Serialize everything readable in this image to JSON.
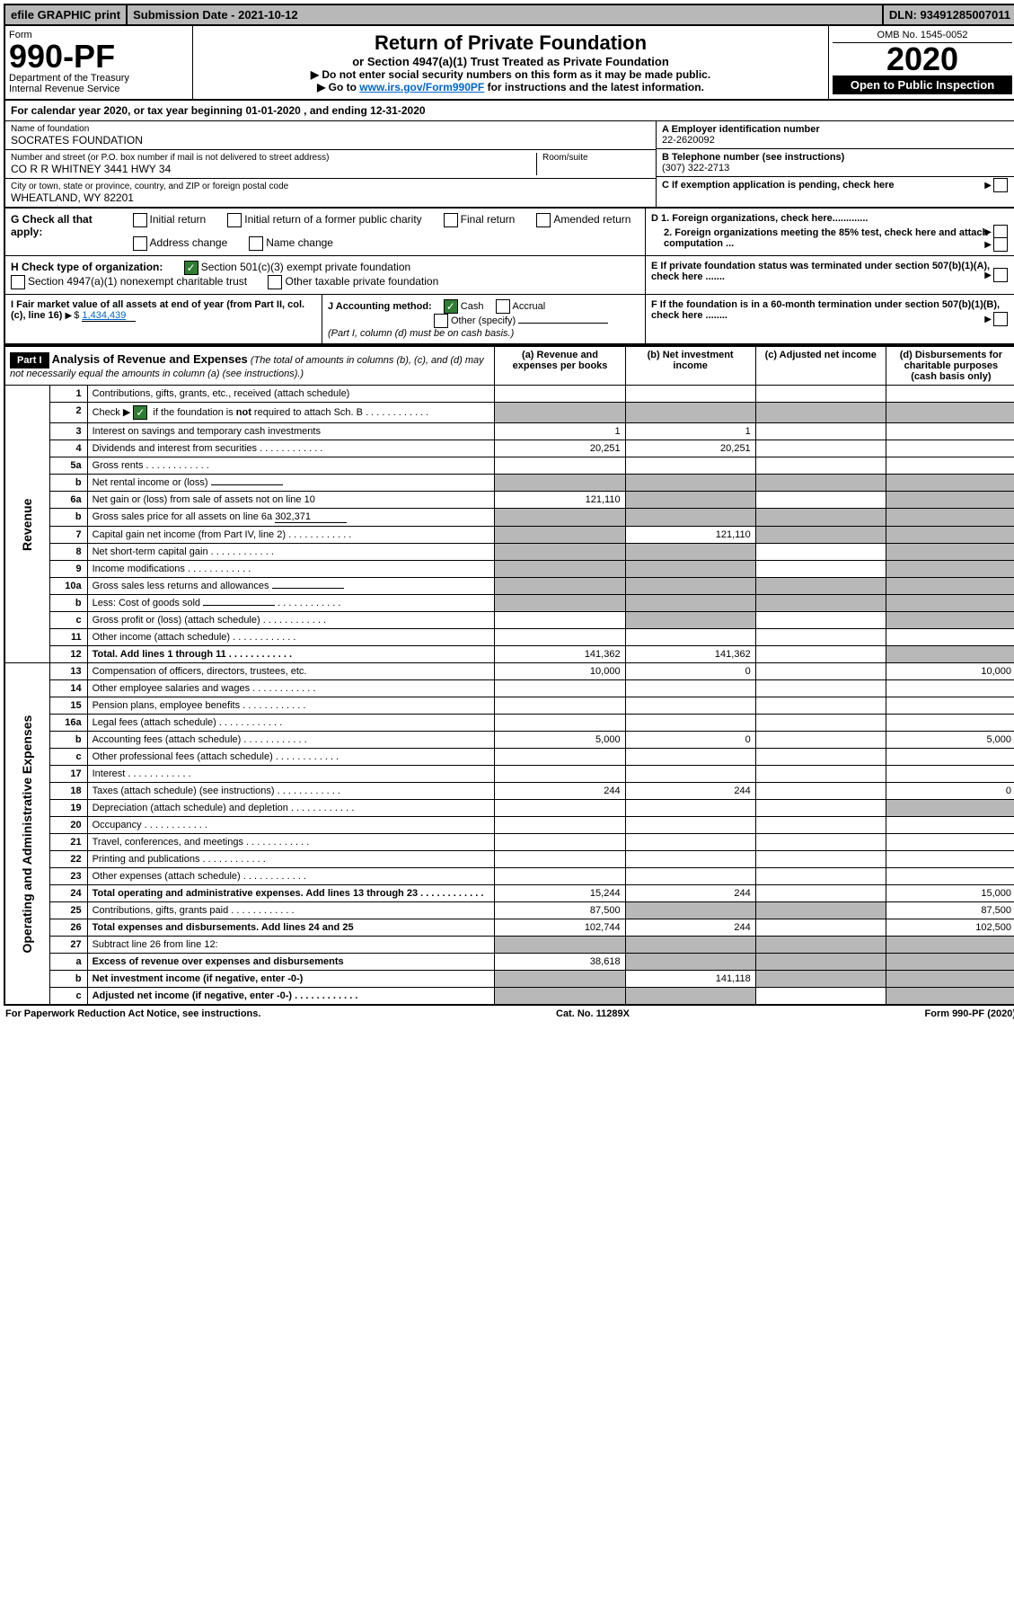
{
  "top": {
    "efile": "efile GRAPHIC print",
    "submission": "Submission Date - 2021-10-12",
    "dln": "DLN: 93491285007011"
  },
  "header": {
    "form_label": "Form",
    "form_number": "990-PF",
    "dept": "Department of the Treasury",
    "irs": "Internal Revenue Service",
    "title": "Return of Private Foundation",
    "subtitle": "or Section 4947(a)(1) Trust Treated as Private Foundation",
    "warn1": "▶ Do not enter social security numbers on this form as it may be made public.",
    "warn2_pre": "▶ Go to ",
    "warn2_link": "www.irs.gov/Form990PF",
    "warn2_post": " for instructions and the latest information.",
    "omb": "OMB No. 1545-0052",
    "year": "2020",
    "open": "Open to Public Inspection"
  },
  "cal_year": "For calendar year 2020, or tax year beginning 01-01-2020                        , and ending 12-31-2020",
  "info": {
    "name_label": "Name of foundation",
    "name": "SOCRATES FOUNDATION",
    "street_label": "Number and street (or P.O. box number if mail is not delivered to street address)",
    "street": "CO R R WHITNEY 3441 HWY 34",
    "room_label": "Room/suite",
    "city_label": "City or town, state or province, country, and ZIP or foreign postal code",
    "city": "WHEATLAND, WY  82201",
    "a_label": "A Employer identification number",
    "a_val": "22-2620092",
    "b_label": "B Telephone number (see instructions)",
    "b_val": "(307) 322-2713",
    "c_label": "C If exemption application is pending, check here",
    "d1_label": "D 1. Foreign organizations, check here.............",
    "d2_label": "2. Foreign organizations meeting the 85% test, check here and attach computation ...",
    "e_label": "E If private foundation status was terminated under section 507(b)(1)(A), check here .......",
    "f_label": "F If the foundation is in a 60-month termination under section 507(b)(1)(B), check here ........"
  },
  "g": {
    "title": "G Check all that apply:",
    "initial": "Initial return",
    "initial_former": "Initial return of a former public charity",
    "final": "Final return",
    "amended": "Amended return",
    "address": "Address change",
    "name": "Name change"
  },
  "h": {
    "title": "H Check type of organization:",
    "sec501": "Section 501(c)(3) exempt private foundation",
    "sec4947": "Section 4947(a)(1) nonexempt charitable trust",
    "other": "Other taxable private foundation"
  },
  "i": {
    "label": "I Fair market value of all assets at end of year (from Part II, col. (c), line 16)",
    "value": "1,434,439"
  },
  "j": {
    "label": "J Accounting method:",
    "cash": "Cash",
    "accrual": "Accrual",
    "other": "Other (specify)",
    "note": "(Part I, column (d) must be on cash basis.)"
  },
  "part1": {
    "label": "Part I",
    "title": "Analysis of Revenue and Expenses",
    "note": "(The total of amounts in columns (b), (c), and (d) may not necessarily equal the amounts in column (a) (see instructions).)",
    "col_a": "(a) Revenue and expenses per books",
    "col_b": "(b) Net investment income",
    "col_c": "(c) Adjusted net income",
    "col_d": "(d) Disbursements for charitable purposes (cash basis only)"
  },
  "side_labels": {
    "revenue": "Revenue",
    "expenses": "Operating and Administrative Expenses"
  },
  "rows": [
    {
      "n": "1",
      "d": "Contributions, gifts, grants, etc., received (attach schedule)",
      "a": "",
      "b": "",
      "c": "",
      "dd": "",
      "grey_c": false,
      "grey_d": false
    },
    {
      "n": "2",
      "d": "Check ▶ ☑ if the foundation is not required to attach Sch. B",
      "a": "",
      "b": "",
      "c": "",
      "dd": "",
      "grey_a": true,
      "grey_b": true,
      "grey_c": true,
      "grey_d": true,
      "bold_d": true,
      "dots": true
    },
    {
      "n": "3",
      "d": "Interest on savings and temporary cash investments",
      "a": "1",
      "b": "1",
      "c": "",
      "dd": ""
    },
    {
      "n": "4",
      "d": "Dividends and interest from securities",
      "a": "20,251",
      "b": "20,251",
      "c": "",
      "dd": "",
      "dots": true
    },
    {
      "n": "5a",
      "d": "Gross rents",
      "a": "",
      "b": "",
      "c": "",
      "dd": "",
      "dots": true
    },
    {
      "n": "b",
      "d": "Net rental income or (loss)",
      "a": "",
      "b": "",
      "c": "",
      "dd": "",
      "grey_a": true,
      "grey_b": true,
      "grey_c": true,
      "grey_d": true,
      "inline": true
    },
    {
      "n": "6a",
      "d": "Net gain or (loss) from sale of assets not on line 10",
      "a": "121,110",
      "b": "",
      "c": "",
      "dd": "",
      "grey_b": true,
      "grey_d": true
    },
    {
      "n": "b",
      "d": "Gross sales price for all assets on line 6a",
      "a": "",
      "b": "",
      "c": "",
      "dd": "",
      "grey_a": true,
      "grey_b": true,
      "grey_c": true,
      "grey_d": true,
      "inline": true,
      "inline_val": "302,371"
    },
    {
      "n": "7",
      "d": "Capital gain net income (from Part IV, line 2)",
      "a": "",
      "b": "121,110",
      "c": "",
      "dd": "",
      "grey_a": true,
      "grey_c": true,
      "grey_d": true,
      "dots": true
    },
    {
      "n": "8",
      "d": "Net short-term capital gain",
      "a": "",
      "b": "",
      "c": "",
      "dd": "",
      "grey_a": true,
      "grey_b": true,
      "grey_d": true,
      "dots": true
    },
    {
      "n": "9",
      "d": "Income modifications",
      "a": "",
      "b": "",
      "c": "",
      "dd": "",
      "grey_a": true,
      "grey_b": true,
      "grey_d": true,
      "dots": true
    },
    {
      "n": "10a",
      "d": "Gross sales less returns and allowances",
      "a": "",
      "b": "",
      "c": "",
      "dd": "",
      "grey_a": true,
      "grey_b": true,
      "grey_c": true,
      "grey_d": true,
      "inline": true
    },
    {
      "n": "b",
      "d": "Less: Cost of goods sold",
      "a": "",
      "b": "",
      "c": "",
      "dd": "",
      "grey_a": true,
      "grey_b": true,
      "grey_c": true,
      "grey_d": true,
      "inline": true,
      "dots": true
    },
    {
      "n": "c",
      "d": "Gross profit or (loss) (attach schedule)",
      "a": "",
      "b": "",
      "c": "",
      "dd": "",
      "grey_b": true,
      "grey_d": true,
      "dots": true
    },
    {
      "n": "11",
      "d": "Other income (attach schedule)",
      "a": "",
      "b": "",
      "c": "",
      "dd": "",
      "dots": true
    },
    {
      "n": "12",
      "d": "Total. Add lines 1 through 11",
      "a": "141,362",
      "b": "141,362",
      "c": "",
      "dd": "",
      "bold": true,
      "grey_d": true,
      "dots": true
    }
  ],
  "exp_rows": [
    {
      "n": "13",
      "d": "Compensation of officers, directors, trustees, etc.",
      "a": "10,000",
      "b": "0",
      "c": "",
      "dd": "10,000"
    },
    {
      "n": "14",
      "d": "Other employee salaries and wages",
      "a": "",
      "b": "",
      "c": "",
      "dd": "",
      "dots": true
    },
    {
      "n": "15",
      "d": "Pension plans, employee benefits",
      "a": "",
      "b": "",
      "c": "",
      "dd": "",
      "dots": true
    },
    {
      "n": "16a",
      "d": "Legal fees (attach schedule)",
      "a": "",
      "b": "",
      "c": "",
      "dd": "",
      "dots": true
    },
    {
      "n": "b",
      "d": "Accounting fees (attach schedule)",
      "a": "5,000",
      "b": "0",
      "c": "",
      "dd": "5,000",
      "dots": true
    },
    {
      "n": "c",
      "d": "Other professional fees (attach schedule)",
      "a": "",
      "b": "",
      "c": "",
      "dd": "",
      "dots": true
    },
    {
      "n": "17",
      "d": "Interest",
      "a": "",
      "b": "",
      "c": "",
      "dd": "",
      "dots": true
    },
    {
      "n": "18",
      "d": "Taxes (attach schedule) (see instructions)",
      "a": "244",
      "b": "244",
      "c": "",
      "dd": "0",
      "dots": true
    },
    {
      "n": "19",
      "d": "Depreciation (attach schedule) and depletion",
      "a": "",
      "b": "",
      "c": "",
      "dd": "",
      "grey_d": true,
      "dots": true
    },
    {
      "n": "20",
      "d": "Occupancy",
      "a": "",
      "b": "",
      "c": "",
      "dd": "",
      "dots": true
    },
    {
      "n": "21",
      "d": "Travel, conferences, and meetings",
      "a": "",
      "b": "",
      "c": "",
      "dd": "",
      "dots": true
    },
    {
      "n": "22",
      "d": "Printing and publications",
      "a": "",
      "b": "",
      "c": "",
      "dd": "",
      "dots": true
    },
    {
      "n": "23",
      "d": "Other expenses (attach schedule)",
      "a": "",
      "b": "",
      "c": "",
      "dd": "",
      "dots": true
    },
    {
      "n": "24",
      "d": "Total operating and administrative expenses. Add lines 13 through 23",
      "a": "15,244",
      "b": "244",
      "c": "",
      "dd": "15,000",
      "bold": true,
      "dots": true
    },
    {
      "n": "25",
      "d": "Contributions, gifts, grants paid",
      "a": "87,500",
      "b": "",
      "c": "",
      "dd": "87,500",
      "grey_b": true,
      "grey_c": true,
      "dots": true
    },
    {
      "n": "26",
      "d": "Total expenses and disbursements. Add lines 24 and 25",
      "a": "102,744",
      "b": "244",
      "c": "",
      "dd": "102,500",
      "bold": true
    },
    {
      "n": "27",
      "d": "Subtract line 26 from line 12:",
      "a": "",
      "b": "",
      "c": "",
      "dd": "",
      "grey_a": true,
      "grey_b": true,
      "grey_c": true,
      "grey_d": true
    },
    {
      "n": "a",
      "d": "Excess of revenue over expenses and disbursements",
      "a": "38,618",
      "b": "",
      "c": "",
      "dd": "",
      "bold": true,
      "grey_b": true,
      "grey_c": true,
      "grey_d": true
    },
    {
      "n": "b",
      "d": "Net investment income (if negative, enter -0-)",
      "a": "",
      "b": "141,118",
      "c": "",
      "dd": "",
      "bold": true,
      "grey_a": true,
      "grey_c": true,
      "grey_d": true
    },
    {
      "n": "c",
      "d": "Adjusted net income (if negative, enter -0-)",
      "a": "",
      "b": "",
      "c": "",
      "dd": "",
      "bold": true,
      "grey_a": true,
      "grey_b": true,
      "grey_d": true,
      "dots": true
    }
  ],
  "footer": {
    "left": "For Paperwork Reduction Act Notice, see instructions.",
    "mid": "Cat. No. 11289X",
    "right": "Form 990-PF (2020)"
  }
}
